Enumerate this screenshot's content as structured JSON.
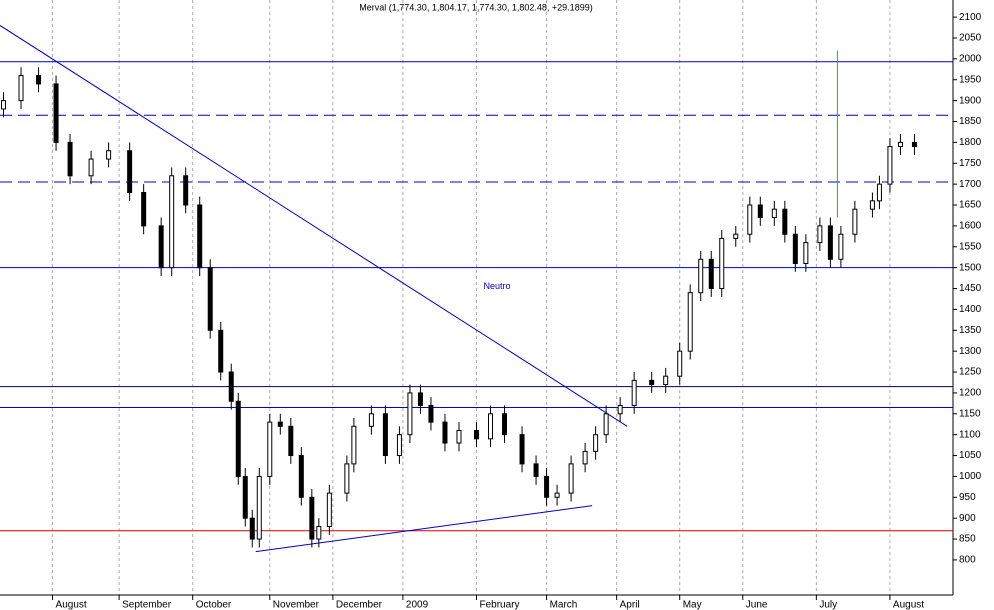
{
  "chart_data": {
    "type": "candlestick",
    "title": "Merval (1,774.30, 1,804.17, 1,774.30, 1,802.48, +29.1899)",
    "xlim": [
      0,
      272
    ],
    "xticks": [
      {
        "value": 15,
        "label": "August"
      },
      {
        "value": 34,
        "label": "September"
      },
      {
        "value": 55,
        "label": "October"
      },
      {
        "value": 77,
        "label": "November"
      },
      {
        "value": 95,
        "label": "December"
      },
      {
        "value": 115,
        "label": "2009"
      },
      {
        "value": 136,
        "label": "February"
      },
      {
        "value": 156,
        "label": "March"
      },
      {
        "value": 176,
        "label": "April"
      },
      {
        "value": 194,
        "label": "May"
      },
      {
        "value": 212,
        "label": "June"
      },
      {
        "value": 233,
        "label": "July"
      },
      {
        "value": 254,
        "label": "August"
      }
    ],
    "ylim": [
      716,
      2141
    ],
    "yticks": [
      800,
      850,
      900,
      950,
      1000,
      1050,
      1100,
      1150,
      1200,
      1250,
      1300,
      1350,
      1400,
      1450,
      1500,
      1550,
      1600,
      1650,
      1700,
      1750,
      1800,
      1850,
      1900,
      1950,
      2000,
      2050,
      2100
    ],
    "x": [
      1,
      6,
      11,
      16,
      20,
      26,
      31,
      37,
      41,
      46,
      49,
      53,
      57,
      60,
      63,
      66,
      68,
      70,
      72,
      74,
      77,
      80,
      83,
      86,
      89,
      91,
      94,
      99,
      101,
      106,
      110,
      114,
      117,
      120,
      123,
      127,
      131,
      136,
      140,
      144,
      149,
      153,
      156,
      159,
      163,
      167,
      170,
      173,
      177,
      181,
      186,
      190,
      194,
      197,
      200,
      203,
      206,
      210,
      214,
      217,
      221,
      224,
      227,
      230,
      234,
      237,
      240,
      244,
      249,
      251,
      254,
      257,
      261
    ],
    "open": [
      1880,
      1900,
      1960,
      1940,
      1800,
      1720,
      1760,
      1780,
      1680,
      1600,
      1500,
      1720,
      1650,
      1500,
      1350,
      1250,
      1180,
      1000,
      900,
      850,
      1000,
      1130,
      1120,
      1050,
      950,
      850,
      880,
      960,
      1030,
      1120,
      1150,
      1050,
      1100,
      1200,
      1170,
      1130,
      1080,
      1110,
      1090,
      1150,
      1100,
      1030,
      1000,
      950,
      960,
      1030,
      1060,
      1100,
      1150,
      1170,
      1230,
      1220,
      1240,
      1300,
      1440,
      1520,
      1450,
      1570,
      1580,
      1650,
      1620,
      1640,
      1580,
      1510,
      1560,
      1600,
      1520,
      1580,
      1640,
      1660,
      1700,
      1790,
      1800
    ],
    "high": [
      1920,
      1980,
      1980,
      1960,
      1820,
      1780,
      1800,
      1800,
      1700,
      1620,
      1740,
      1740,
      1670,
      1520,
      1370,
      1270,
      1200,
      1020,
      920,
      1020,
      1150,
      1150,
      1140,
      1070,
      970,
      900,
      980,
      1050,
      1140,
      1170,
      1170,
      1120,
      1220,
      1220,
      1190,
      1150,
      1130,
      1130,
      1170,
      1170,
      1120,
      1050,
      1020,
      980,
      1050,
      1080,
      1120,
      1170,
      1190,
      1250,
      1250,
      1260,
      1320,
      1460,
      1540,
      1540,
      1590,
      1600,
      1670,
      1670,
      1660,
      1660,
      1600,
      1580,
      1620,
      1620,
      1600,
      1660,
      1680,
      1720,
      1810,
      1820,
      1820
    ],
    "low": [
      1860,
      1880,
      1920,
      1780,
      1700,
      1700,
      1740,
      1660,
      1580,
      1480,
      1480,
      1630,
      1480,
      1330,
      1230,
      1160,
      980,
      880,
      830,
      830,
      980,
      1100,
      1030,
      930,
      830,
      830,
      860,
      940,
      1010,
      1100,
      1030,
      1030,
      1080,
      1150,
      1110,
      1060,
      1060,
      1070,
      1070,
      1080,
      1010,
      980,
      930,
      930,
      940,
      1010,
      1040,
      1080,
      1130,
      1150,
      1200,
      1200,
      1220,
      1280,
      1420,
      1430,
      1430,
      1550,
      1560,
      1600,
      1600,
      1560,
      1490,
      1490,
      1540,
      1500,
      1500,
      1560,
      1620,
      1640,
      1680,
      1770,
      1770
    ],
    "close": [
      1900,
      1960,
      1940,
      1800,
      1720,
      1760,
      1780,
      1680,
      1600,
      1500,
      1720,
      1650,
      1500,
      1350,
      1250,
      1180,
      1000,
      900,
      850,
      1000,
      1130,
      1120,
      1050,
      950,
      850,
      880,
      960,
      1030,
      1120,
      1150,
      1050,
      1100,
      1200,
      1170,
      1130,
      1080,
      1110,
      1090,
      1150,
      1100,
      1030,
      1000,
      950,
      960,
      1030,
      1060,
      1100,
      1150,
      1170,
      1230,
      1220,
      1240,
      1300,
      1440,
      1520,
      1450,
      1570,
      1580,
      1650,
      1620,
      1640,
      1580,
      1510,
      1560,
      1600,
      1520,
      1580,
      1640,
      1660,
      1700,
      1790,
      1800,
      1790
    ],
    "levels": [
      {
        "value": 1993,
        "color": "#0000cc",
        "style": "solid"
      },
      {
        "value": 1865,
        "color": "#0000cc",
        "style": "dashed"
      },
      {
        "value": 1705,
        "color": "#0000cc",
        "style": "dashed"
      },
      {
        "value": 1500,
        "color": "#0000cc",
        "style": "solid"
      },
      {
        "value": 1215,
        "color": "#000066",
        "style": "solid"
      },
      {
        "value": 1165,
        "color": "#0000cc",
        "style": "solid"
      },
      {
        "value": 870,
        "color": "#dd0000",
        "style": "solid"
      }
    ],
    "trendlines": [
      {
        "from": [
          0,
          2080
        ],
        "to": [
          179,
          1120
        ],
        "color": "#0000cc"
      },
      {
        "from": [
          73,
          820
        ],
        "to": [
          169,
          930
        ],
        "color": "#0000cc"
      },
      {
        "from": [
          239,
          2020
        ],
        "to": [
          239,
          1620
        ],
        "color": "#00cc00"
      }
    ],
    "annotation": {
      "text": "Neutro",
      "x": 138,
      "y": 1455
    }
  }
}
